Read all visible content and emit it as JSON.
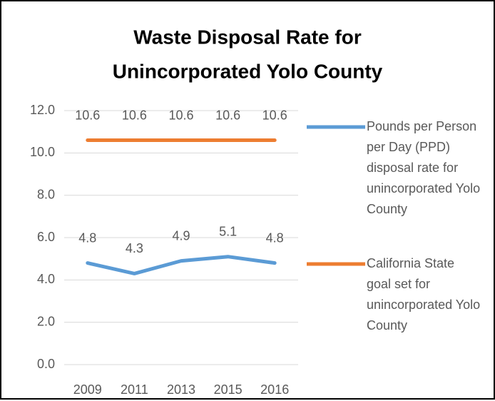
{
  "chart_data": {
    "type": "line",
    "title": [
      "Waste Disposal Rate for",
      "Unincorporated Yolo County"
    ],
    "categories": [
      "2009",
      "2011",
      "2013",
      "2015",
      "2016"
    ],
    "series": [
      {
        "name": "Pounds per Person per Day (PPD) disposal rate for unincorporated Yolo County",
        "color": "#5b9bd5",
        "values": [
          4.8,
          4.3,
          4.9,
          5.1,
          4.8
        ]
      },
      {
        "name": "California State goal set for unincorporated Yolo County",
        "color": "#ed7d31",
        "values": [
          10.6,
          10.6,
          10.6,
          10.6,
          10.6
        ]
      }
    ],
    "ylim": [
      0,
      12
    ],
    "yticks": [
      {
        "value": 0,
        "label": "0.0"
      },
      {
        "value": 2,
        "label": "2.0"
      },
      {
        "value": 4,
        "label": "4.0"
      },
      {
        "value": 6,
        "label": "6.0"
      },
      {
        "value": 8,
        "label": "8.0"
      },
      {
        "value": 10,
        "label": "10.0"
      },
      {
        "value": 12,
        "label": "12.0"
      }
    ],
    "grid": true,
    "legend": "right"
  }
}
